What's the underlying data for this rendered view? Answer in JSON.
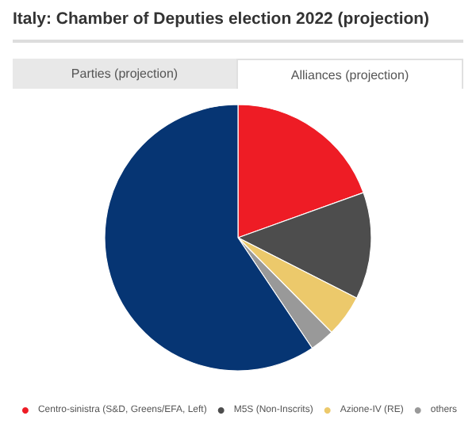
{
  "chart_data": {
    "type": "pie",
    "title": "Italy: Chamber of Deputies election 2022 (projection)",
    "annotations": [
      "Parties (projection)",
      "Alliances (projection)"
    ],
    "categories": [
      "Centro-sinistra (S&D, Greens/EFA, Left)",
      "M5S (Non-Inscrits)",
      "Azione-IV (RE)",
      "others",
      null
    ],
    "values": [
      19.5,
      13,
      5.1,
      3,
      59.4
    ],
    "colors": [
      "#ee1c25",
      "#4d4d4d",
      "#ecc96b",
      "#999999",
      "#063573"
    ],
    "legend": "bottom"
  }
}
